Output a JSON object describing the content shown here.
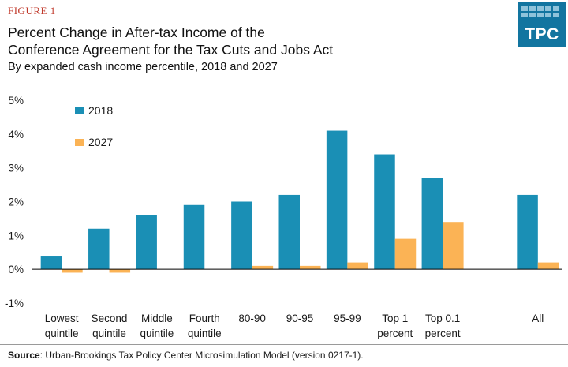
{
  "header": {
    "figure_label": "FIGURE 1",
    "title_line1": "Percent Change in After-tax Income of the",
    "title_line2": "Conference Agreement for the Tax Cuts and Jobs Act",
    "subtitle": "By expanded cash income percentile, 2018 and 2027"
  },
  "logo": {
    "text": "TPC"
  },
  "source": {
    "label": "Source",
    "text": ": Urban-Brookings Tax Policy Center Microsimulation Model (version 0217-1)."
  },
  "chart_data": {
    "type": "bar",
    "title": "Percent Change in After-tax Income of the Conference Agreement for the Tax Cuts and Jobs Act",
    "subtitle": "By expanded cash income percentile, 2018 and 2027",
    "categories": [
      [
        "Lowest",
        "quintile"
      ],
      [
        "Second",
        "quintile"
      ],
      [
        "Middle",
        "quintile"
      ],
      [
        "Fourth",
        "quintile"
      ],
      [
        "80-90"
      ],
      [
        "90-95"
      ],
      [
        "95-99"
      ],
      [
        "Top 1",
        "percent"
      ],
      [
        "Top 0.1",
        "percent"
      ],
      [
        ""
      ],
      [
        "All"
      ]
    ],
    "series": [
      {
        "name": "2018",
        "color": "#1a8fb5",
        "values": [
          0.4,
          1.2,
          1.6,
          1.9,
          2.0,
          2.2,
          4.1,
          3.4,
          2.7,
          null,
          2.2
        ]
      },
      {
        "name": "2027",
        "color": "#fbb355",
        "values": [
          -0.1,
          -0.1,
          0.0,
          0.0,
          0.1,
          0.1,
          0.2,
          0.9,
          1.4,
          null,
          0.2
        ]
      }
    ],
    "ylim": [
      -1,
      5
    ],
    "yticks": [
      -1,
      0,
      1,
      2,
      3,
      4,
      5
    ],
    "ytick_labels": [
      "-1%",
      "0%",
      "1%",
      "2%",
      "3%",
      "4%",
      "5%"
    ],
    "legend_position": "top-left",
    "grid": false,
    "xlabel": "",
    "ylabel": ""
  }
}
